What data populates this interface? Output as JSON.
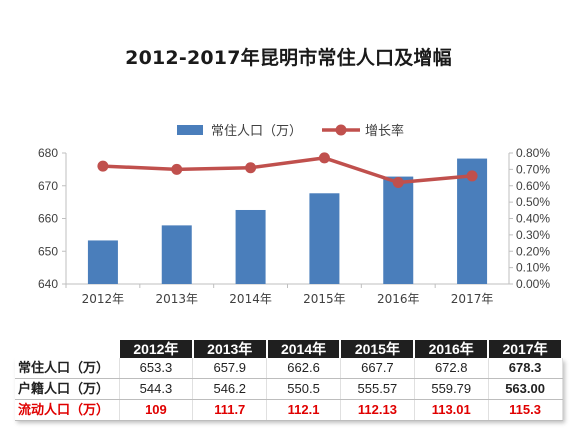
{
  "chart_data": {
    "type": "bar",
    "title": "2012-2017年昆明市常住人口及增幅",
    "categories": [
      "2012年",
      "2013年",
      "2014年",
      "2015年",
      "2016年",
      "2017年"
    ],
    "series": [
      {
        "name": "常住人口（万）",
        "type": "bar",
        "axis": "left",
        "color": "#4a7ebb",
        "values": [
          653.3,
          657.9,
          662.6,
          667.7,
          672.8,
          678.3
        ]
      },
      {
        "name": "增长率",
        "type": "line",
        "axis": "right",
        "color": "#c0504d",
        "values": [
          0.0072,
          0.007,
          0.0071,
          0.0077,
          0.0062,
          0.0066
        ]
      }
    ],
    "y_left": {
      "min": 640,
      "max": 680,
      "ticks": [
        "640",
        "650",
        "660",
        "670",
        "680"
      ]
    },
    "y_right": {
      "min": 0,
      "max": 0.008,
      "ticks": [
        "0.00%",
        "0.10%",
        "0.20%",
        "0.30%",
        "0.40%",
        "0.50%",
        "0.60%",
        "0.70%",
        "0.80%"
      ]
    },
    "legend_position": "top",
    "grid": false
  },
  "table": {
    "headers": [
      "2012年",
      "2013年",
      "2014年",
      "2015年",
      "2016年",
      "2017年"
    ],
    "rows": [
      {
        "label": "常住人口（万）",
        "values": [
          "653.3",
          "657.9",
          "662.6",
          "667.7",
          "672.8",
          "678.3"
        ]
      },
      {
        "label": "户籍人口（万）",
        "values": [
          "544.3",
          "546.2",
          "550.5",
          "555.57",
          "559.79",
          "563.00"
        ]
      },
      {
        "label": "流动人口（万）",
        "values": [
          "109",
          "111.7",
          "112.1",
          "112.13",
          "113.01",
          "115.3"
        ]
      }
    ]
  }
}
